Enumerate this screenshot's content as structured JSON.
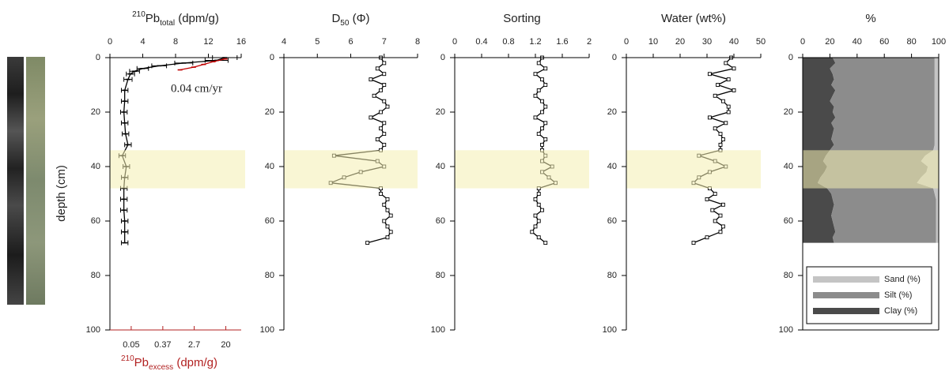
{
  "chart_data": [
    {
      "type": "line",
      "title": {
        "sup": "210",
        "text": "Pb",
        "sub": "total",
        "unit": " (dpm/g)"
      },
      "ylabel": "depth (cm)",
      "xlim": [
        0,
        16
      ],
      "xticks": [
        0,
        4,
        8,
        12,
        16
      ],
      "x2lim": [
        0.013,
        53
      ],
      "x2log": true,
      "x2ticks": [
        0.05,
        0.37,
        2.7,
        20
      ],
      "x2color": "#b22222",
      "x2label": {
        "sup": "210",
        "text": "Pb",
        "sub": "excess",
        "unit": " (dpm/g)"
      },
      "ylim": [
        0,
        100
      ],
      "yticks": [
        0,
        20,
        40,
        60,
        80,
        100
      ],
      "highlight": [
        34,
        48
      ],
      "annotation": "0.04 cm/yr",
      "annotation_color": "#c00000",
      "series": [
        {
          "color": "#000000",
          "marker": "dash",
          "y": [
            0,
            1,
            2,
            3,
            4,
            5,
            6,
            8,
            12,
            16,
            20,
            24,
            28,
            32,
            36,
            40,
            44,
            48,
            52,
            56,
            60,
            64,
            68
          ],
          "values": [
            14,
            13,
            9,
            6,
            4,
            3,
            2.5,
            2.2,
            1.8,
            1.8,
            1.7,
            1.8,
            1.9,
            2.2,
            1.5,
            2.0,
            1.8,
            1.7,
            1.7,
            1.7,
            1.8,
            1.8,
            1.8
          ],
          "errors": [
            1.5,
            1.4,
            1.1,
            0.9,
            0.7,
            0.6,
            0.5,
            0.5,
            0.4,
            0.4,
            0.4,
            0.4,
            0.4,
            0.4,
            0.4,
            0.4,
            0.4,
            0.4,
            0.4,
            0.4,
            0.4,
            0.4,
            0.4
          ]
        },
        {
          "color": "#c00000",
          "marker": "dash",
          "axis": "x2",
          "y": [
            0.5,
            1.5,
            2.5,
            3.5,
            4.5
          ],
          "values": [
            19,
            9,
            4.9,
            2.6,
            1.1
          ]
        }
      ]
    },
    {
      "type": "line",
      "title": {
        "text": "D",
        "sub": "50",
        "unit": " (Φ)"
      },
      "xlim": [
        4,
        8
      ],
      "xticks": [
        4,
        5,
        6,
        7,
        8
      ],
      "ylim": [
        0,
        100
      ],
      "yticks": [
        0,
        20,
        40,
        60,
        80,
        100
      ],
      "highlight": [
        34,
        48
      ],
      "series": [
        {
          "color": "#000000",
          "marker": "square",
          "y": [
            0,
            2,
            4,
            6,
            8,
            10,
            12,
            14,
            16,
            18,
            20,
            22,
            24,
            26,
            28,
            30,
            32,
            34,
            36,
            38,
            40,
            42,
            44,
            46,
            48,
            50,
            52,
            54,
            56,
            58,
            60,
            62,
            64,
            66,
            68
          ],
          "values": [
            6.9,
            7.0,
            6.8,
            7.0,
            6.6,
            7.0,
            6.9,
            6.7,
            7.0,
            7.1,
            6.9,
            6.6,
            7.0,
            6.9,
            7.0,
            6.8,
            7.0,
            6.9,
            5.5,
            6.8,
            7.0,
            6.3,
            5.8,
            5.4,
            6.9,
            6.9,
            7.1,
            7.0,
            7.1,
            7.2,
            7.0,
            7.1,
            7.2,
            7.1,
            6.5
          ]
        }
      ]
    },
    {
      "type": "line",
      "title": "Sorting",
      "xlim": [
        0,
        2
      ],
      "xticks": [
        0,
        0.4,
        0.8,
        1.2,
        1.6,
        2
      ],
      "ylim": [
        0,
        100
      ],
      "yticks": [
        0,
        20,
        40,
        60,
        80,
        100
      ],
      "highlight": [
        34,
        48
      ],
      "series": [
        {
          "color": "#000000",
          "marker": "square",
          "y": [
            0,
            2,
            4,
            6,
            8,
            10,
            12,
            14,
            16,
            18,
            20,
            22,
            24,
            26,
            28,
            30,
            32,
            34,
            36,
            38,
            40,
            42,
            44,
            46,
            48,
            50,
            52,
            54,
            56,
            58,
            60,
            62,
            64,
            66,
            68
          ],
          "values": [
            1.3,
            1.25,
            1.35,
            1.2,
            1.3,
            1.35,
            1.25,
            1.2,
            1.3,
            1.35,
            1.3,
            1.2,
            1.35,
            1.3,
            1.25,
            1.35,
            1.3,
            1.3,
            1.35,
            1.3,
            1.45,
            1.3,
            1.4,
            1.5,
            1.25,
            1.25,
            1.2,
            1.25,
            1.3,
            1.2,
            1.25,
            1.2,
            1.15,
            1.25,
            1.35
          ]
        }
      ]
    },
    {
      "type": "line",
      "title": "Water (wt%)",
      "xlim": [
        0,
        50
      ],
      "xticks": [
        0,
        10,
        20,
        30,
        40,
        50
      ],
      "ylim": [
        0,
        100
      ],
      "yticks": [
        0,
        20,
        40,
        60,
        80,
        100
      ],
      "highlight": [
        34,
        48
      ],
      "series": [
        {
          "color": "#000000",
          "marker": "square",
          "y": [
            0,
            2,
            4,
            6,
            8,
            10,
            12,
            14,
            16,
            18,
            20,
            22,
            24,
            26,
            28,
            30,
            32,
            34,
            36,
            38,
            40,
            42,
            44,
            46,
            48,
            50,
            52,
            54,
            56,
            58,
            60,
            62,
            64,
            66,
            68
          ],
          "values": [
            39,
            37,
            40,
            31,
            38,
            34,
            40,
            33,
            36,
            38,
            38,
            31,
            37,
            33,
            35,
            36,
            35,
            35,
            27,
            33,
            37,
            31,
            27,
            25,
            31,
            33,
            30,
            36,
            32,
            35,
            33,
            36,
            35,
            30,
            25
          ]
        }
      ]
    },
    {
      "type": "stacked_area",
      "title": "%",
      "xlim": [
        0,
        100
      ],
      "xticks": [
        0,
        20,
        40,
        60,
        80,
        100
      ],
      "ylim": [
        0,
        100
      ],
      "yticks": [
        0,
        20,
        40,
        60,
        80,
        100
      ],
      "highlight": [
        34,
        48
      ],
      "legend": "lower-left",
      "box": true,
      "y": [
        0,
        2,
        4,
        6,
        8,
        10,
        12,
        14,
        16,
        18,
        20,
        22,
        24,
        26,
        28,
        30,
        32,
        34,
        36,
        38,
        40,
        42,
        44,
        46,
        48,
        50,
        52,
        54,
        56,
        58,
        60,
        62,
        64,
        66,
        68
      ],
      "series": [
        {
          "name": "Clay (%)",
          "color": "#4a4a4a",
          "values": [
            22,
            24,
            20,
            22,
            23,
            21,
            24,
            22,
            20,
            23,
            22,
            24,
            21,
            23,
            22,
            21,
            23,
            20,
            17,
            15,
            18,
            16,
            13,
            11,
            18,
            21,
            22,
            23,
            22,
            21,
            22,
            23,
            24,
            22,
            23
          ]
        },
        {
          "name": "Silt (%)",
          "color": "#8c8c8c",
          "values": [
            75,
            73,
            77,
            75,
            74,
            76,
            73,
            75,
            77,
            74,
            75,
            73,
            76,
            74,
            75,
            76,
            74,
            76,
            73,
            72,
            74,
            75,
            74,
            73,
            78,
            76,
            76,
            75,
            76,
            77,
            76,
            75,
            74,
            76,
            75
          ]
        },
        {
          "name": "Sand (%)",
          "color": "#c4c4c4",
          "values": [
            3,
            3,
            3,
            3,
            3,
            3,
            3,
            3,
            3,
            3,
            3,
            3,
            3,
            3,
            3,
            3,
            3,
            4,
            10,
            13,
            8,
            9,
            13,
            16,
            4,
            3,
            2,
            2,
            2,
            2,
            2,
            2,
            2,
            2,
            2
          ]
        }
      ]
    }
  ]
}
